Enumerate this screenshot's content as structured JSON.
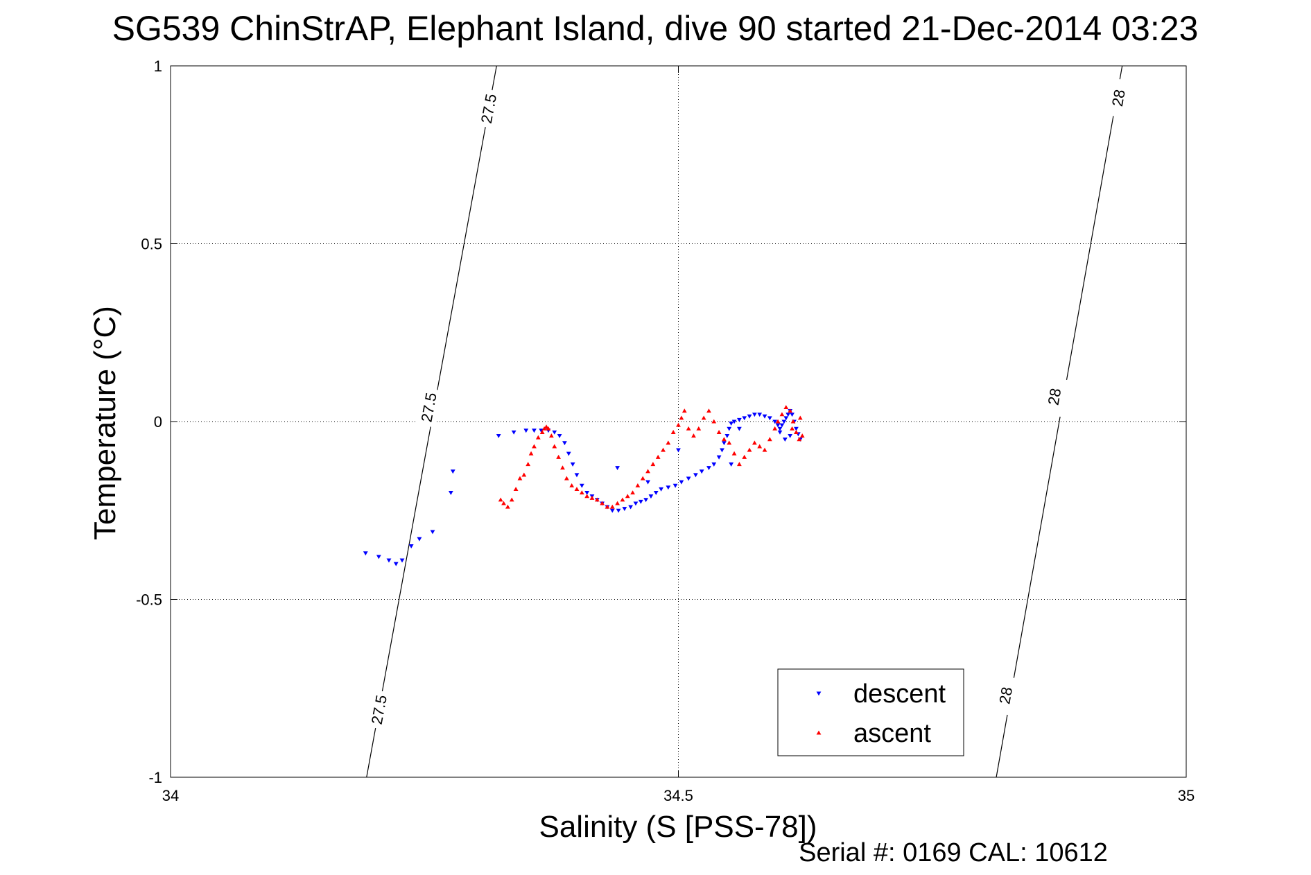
{
  "chart_data": {
    "type": "scatter",
    "title": "SG539 ChinStrAP, Elephant Island, dive 90 started 21-Dec-2014 03:23",
    "xlabel": "Salinity (S [PSS-78])",
    "ylabel": "Temperature (°C)",
    "footnote": "Serial #: 0169 CAL: 10612",
    "xlim": [
      34,
      35
    ],
    "ylim": [
      -1,
      1
    ],
    "xticks": [
      34,
      34.5,
      35
    ],
    "xtick_labels": [
      "34",
      "34.5",
      "35"
    ],
    "yticks": [
      -1,
      -0.5,
      0,
      0.5,
      1
    ],
    "ytick_labels": [
      "-1",
      "-0.5",
      "0",
      "0.5",
      "1"
    ],
    "grid": true,
    "legend_position": "bottom-right",
    "isopycnals": [
      {
        "label": "27.5",
        "endpoints": [
          [
            34.193,
            -1
          ],
          [
            34.321,
            1
          ]
        ],
        "label_at": [
          [
            34.205,
            -0.81
          ],
          [
            34.254,
            0.04
          ],
          [
            34.313,
            0.88
          ]
        ]
      },
      {
        "label": "28",
        "endpoints": [
          [
            34.813,
            -1
          ],
          [
            34.937,
            1
          ]
        ],
        "label_at": [
          [
            34.822,
            -0.77
          ],
          [
            34.87,
            0.07
          ],
          [
            34.933,
            0.91
          ]
        ]
      }
    ],
    "series": [
      {
        "name": "descent",
        "color": "#0000ff",
        "marker": "triangle-down",
        "x": [
          34.192,
          34.205,
          34.215,
          34.222,
          34.228,
          34.237,
          34.245,
          34.258,
          34.276,
          34.278,
          34.323,
          34.338,
          34.35,
          34.358,
          34.365,
          34.372,
          34.378,
          34.383,
          34.388,
          34.392,
          34.396,
          34.4,
          34.405,
          34.41,
          34.415,
          34.42,
          34.425,
          34.43,
          34.435,
          34.441,
          34.447,
          34.453,
          34.458,
          34.463,
          34.468,
          34.473,
          34.478,
          34.483,
          34.49,
          34.497,
          34.503,
          34.51,
          34.517,
          34.523,
          34.53,
          34.535,
          34.54,
          34.543,
          34.545,
          34.548,
          34.55,
          34.552,
          34.555,
          34.56,
          34.565,
          34.57,
          34.575,
          34.58,
          34.585,
          34.59,
          34.595,
          34.598,
          34.6,
          34.602,
          34.604,
          34.606,
          34.608,
          34.61,
          34.612,
          34.614,
          34.616,
          34.618,
          34.62,
          34.6,
          34.605,
          34.61,
          34.56,
          34.552,
          34.5,
          34.47,
          34.44
        ],
        "y": [
          -0.37,
          -0.38,
          -0.39,
          -0.4,
          -0.39,
          -0.35,
          -0.33,
          -0.31,
          -0.2,
          -0.14,
          -0.04,
          -0.03,
          -0.025,
          -0.025,
          -0.025,
          -0.025,
          -0.03,
          -0.04,
          -0.06,
          -0.09,
          -0.12,
          -0.15,
          -0.18,
          -0.2,
          -0.21,
          -0.22,
          -0.23,
          -0.24,
          -0.25,
          -0.25,
          -0.245,
          -0.24,
          -0.23,
          -0.225,
          -0.22,
          -0.21,
          -0.2,
          -0.19,
          -0.185,
          -0.18,
          -0.17,
          -0.16,
          -0.15,
          -0.14,
          -0.13,
          -0.12,
          -0.1,
          -0.08,
          -0.06,
          -0.04,
          -0.02,
          -0.005,
          0.0,
          0.005,
          0.01,
          0.015,
          0.02,
          0.02,
          0.015,
          0.01,
          0.0,
          -0.01,
          -0.02,
          -0.01,
          0.0,
          0.01,
          0.02,
          0.03,
          0.02,
          0.0,
          -0.02,
          -0.035,
          -0.05,
          -0.03,
          -0.05,
          -0.04,
          -0.02,
          -0.12,
          -0.08,
          -0.17,
          -0.13
        ]
      },
      {
        "name": "ascent",
        "color": "#ff0000",
        "marker": "triangle-up",
        "x": [
          34.325,
          34.328,
          34.332,
          34.336,
          34.34,
          34.344,
          34.348,
          34.352,
          34.355,
          34.358,
          34.362,
          34.366,
          34.368,
          34.37,
          34.372,
          34.375,
          34.378,
          34.382,
          34.386,
          34.39,
          34.395,
          34.4,
          34.405,
          34.41,
          34.415,
          34.42,
          34.425,
          34.43,
          34.435,
          34.44,
          34.445,
          34.45,
          34.455,
          34.46,
          34.465,
          34.47,
          34.475,
          34.48,
          34.485,
          34.49,
          34.495,
          34.5,
          34.503,
          34.506,
          34.51,
          34.515,
          34.52,
          34.525,
          34.53,
          34.535,
          34.54,
          34.545,
          34.55,
          34.555,
          34.56,
          34.565,
          34.57,
          34.575,
          34.58,
          34.585,
          34.59,
          34.595,
          34.598,
          34.602,
          34.606,
          34.61,
          34.613,
          34.616,
          34.619,
          34.622,
          34.612,
          34.62
        ],
        "y": [
          -0.22,
          -0.23,
          -0.24,
          -0.22,
          -0.19,
          -0.16,
          -0.15,
          -0.12,
          -0.09,
          -0.07,
          -0.045,
          -0.03,
          -0.02,
          -0.015,
          -0.02,
          -0.04,
          -0.07,
          -0.1,
          -0.13,
          -0.16,
          -0.18,
          -0.19,
          -0.2,
          -0.21,
          -0.215,
          -0.22,
          -0.23,
          -0.24,
          -0.24,
          -0.23,
          -0.22,
          -0.21,
          -0.2,
          -0.18,
          -0.16,
          -0.14,
          -0.12,
          -0.1,
          -0.08,
          -0.06,
          -0.03,
          -0.01,
          0.01,
          0.03,
          -0.02,
          -0.04,
          -0.02,
          0.01,
          0.03,
          0.0,
          -0.03,
          -0.05,
          -0.06,
          -0.09,
          -0.12,
          -0.1,
          -0.08,
          -0.06,
          -0.07,
          -0.08,
          -0.05,
          -0.02,
          0.0,
          0.02,
          0.04,
          0.03,
          0.0,
          -0.03,
          -0.05,
          -0.04,
          -0.02,
          0.01
        ]
      }
    ]
  }
}
